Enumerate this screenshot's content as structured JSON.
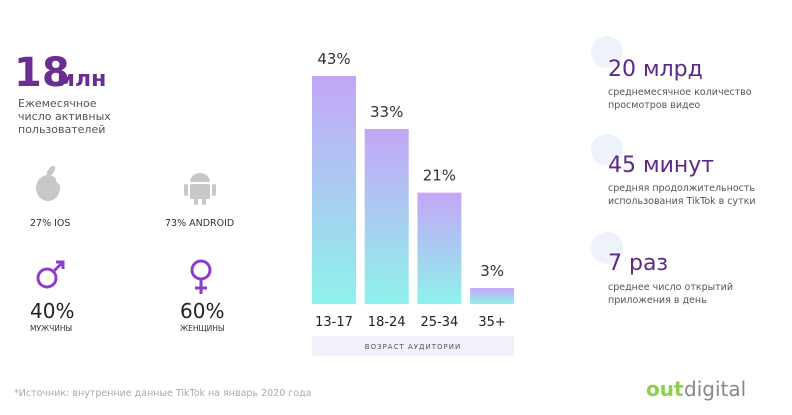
{
  "users": {
    "number": "18",
    "unit": "млн",
    "description": [
      "Ежемесячное",
      "число активных",
      "пользователей"
    ]
  },
  "platforms": [
    {
      "label": "27% IOS"
    },
    {
      "label": "73% ANDROID"
    }
  ],
  "gender": [
    {
      "share": "40%",
      "label": "МУЖЧИНЫ"
    },
    {
      "share": "60%",
      "label": "ЖЕНЩИНЫ"
    }
  ],
  "chart_data": {
    "type": "bar",
    "categories": [
      "13-17",
      "18-24",
      "25-34",
      "35+"
    ],
    "values": [
      43,
      33,
      21,
      3
    ],
    "value_labels": [
      "43%",
      "33%",
      "21%",
      "3%"
    ],
    "x_label": "ВОЗРАСТ АУДИТОРИИ",
    "gradient": [
      "#c4a6f7",
      "#8ef2eb"
    ]
  },
  "stats": [
    {
      "value": "20 млрд",
      "description": [
        "среднемесячное количество",
        "просмотров видео"
      ]
    },
    {
      "value": "45 минут",
      "description": [
        "средняя продолжительность",
        "использования TikTok в сутки"
      ]
    },
    {
      "value": "7 раз",
      "description": [
        "среднее число открытий",
        "приложения в день"
      ]
    }
  ],
  "footer": {
    "source": "*Источник: внутренние данные TikTok на январь 2020 года",
    "logo_accent": "out",
    "logo_rest": "digital"
  }
}
